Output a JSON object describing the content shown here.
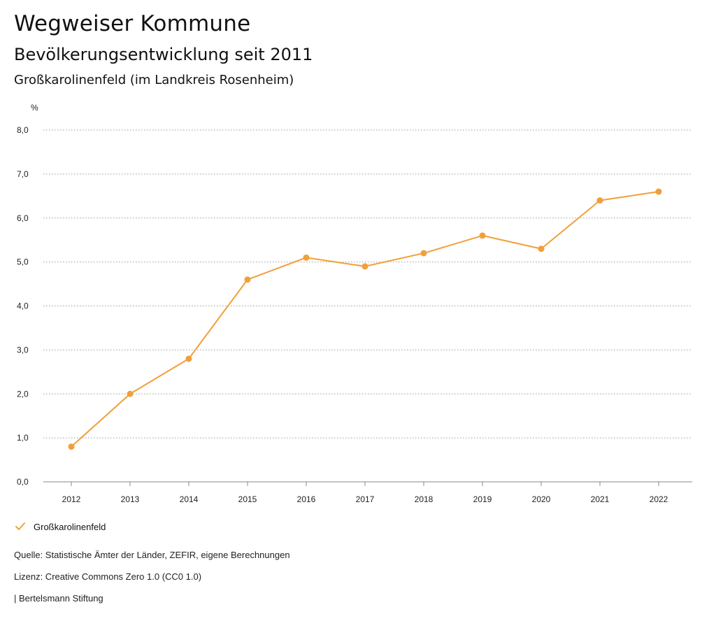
{
  "header": {
    "title": "Wegweiser Kommune",
    "subtitle": "Bevölkerungsentwicklung seit 2011",
    "region": "Großkarolinenfeld (im Landkreis Rosenheim)"
  },
  "chart_data": {
    "type": "line",
    "title": "Bevölkerungsentwicklung seit 2011",
    "ylabel": "%",
    "xlabel": "",
    "ylim": [
      0,
      8
    ],
    "yticks": [
      "0,0",
      "1,0",
      "2,0",
      "3,0",
      "4,0",
      "5,0",
      "6,0",
      "7,0",
      "8,0"
    ],
    "categories": [
      "2012",
      "2013",
      "2014",
      "2015",
      "2016",
      "2017",
      "2018",
      "2019",
      "2020",
      "2021",
      "2022"
    ],
    "series": [
      {
        "name": "Großkarolinenfeld",
        "color": "#f0a03a",
        "values": [
          0.8,
          2.0,
          2.8,
          4.6,
          5.1,
          4.9,
          5.2,
          5.6,
          5.3,
          6.4,
          6.6
        ]
      }
    ],
    "grid": true,
    "legend": "bottom-left"
  },
  "legend": {
    "label": "Großkarolinenfeld",
    "icon": "check-icon"
  },
  "footer": {
    "source": "Quelle: Statistische Ämter der Länder, ZEFIR, eigene Berechnungen",
    "license": "Lizenz: Creative Commons Zero 1.0 (CC0 1.0)",
    "org": "| Bertelsmann Stiftung"
  }
}
